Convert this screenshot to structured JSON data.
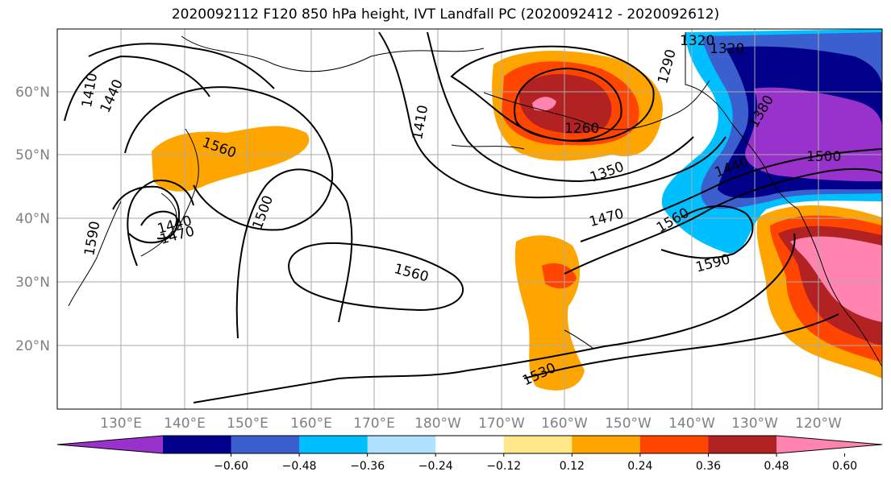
{
  "title": "2020092112 F120 850 hPa height, IVT Landfall PC (2020092412 - 2020092612)",
  "lat_labels": [
    "60°N",
    "50°N",
    "40°N",
    "30°N",
    "20°N"
  ],
  "lon_labels": [
    "130°E",
    "140°E",
    "150°E",
    "160°E",
    "170°E",
    "180°W",
    "170°W",
    "160°W",
    "150°W",
    "140°W",
    "130°W",
    "120°W"
  ],
  "contour_labels": [
    "1410",
    "1440",
    "1560",
    "1410",
    "1290",
    "1320",
    "1320",
    "1260",
    "1350",
    "1380",
    "1440",
    "1500",
    "1470",
    "1560",
    "1590",
    "1560",
    "1500",
    "1440",
    "1470",
    "1590",
    "1530"
  ],
  "colorbar": {
    "ticks": [
      "−0.60",
      "−0.48",
      "−0.36",
      "−0.24",
      "−0.12",
      "0.12",
      "0.24",
      "0.36",
      "0.48",
      "0.60"
    ],
    "colors": [
      "#9932cc",
      "#00008b",
      "#3b5fcd",
      "#00bfff",
      "#b0e2ff",
      "#ffffff",
      "#ffe88a",
      "#ffa500",
      "#ff4500",
      "#b22222",
      "#ff85b0"
    ]
  }
}
